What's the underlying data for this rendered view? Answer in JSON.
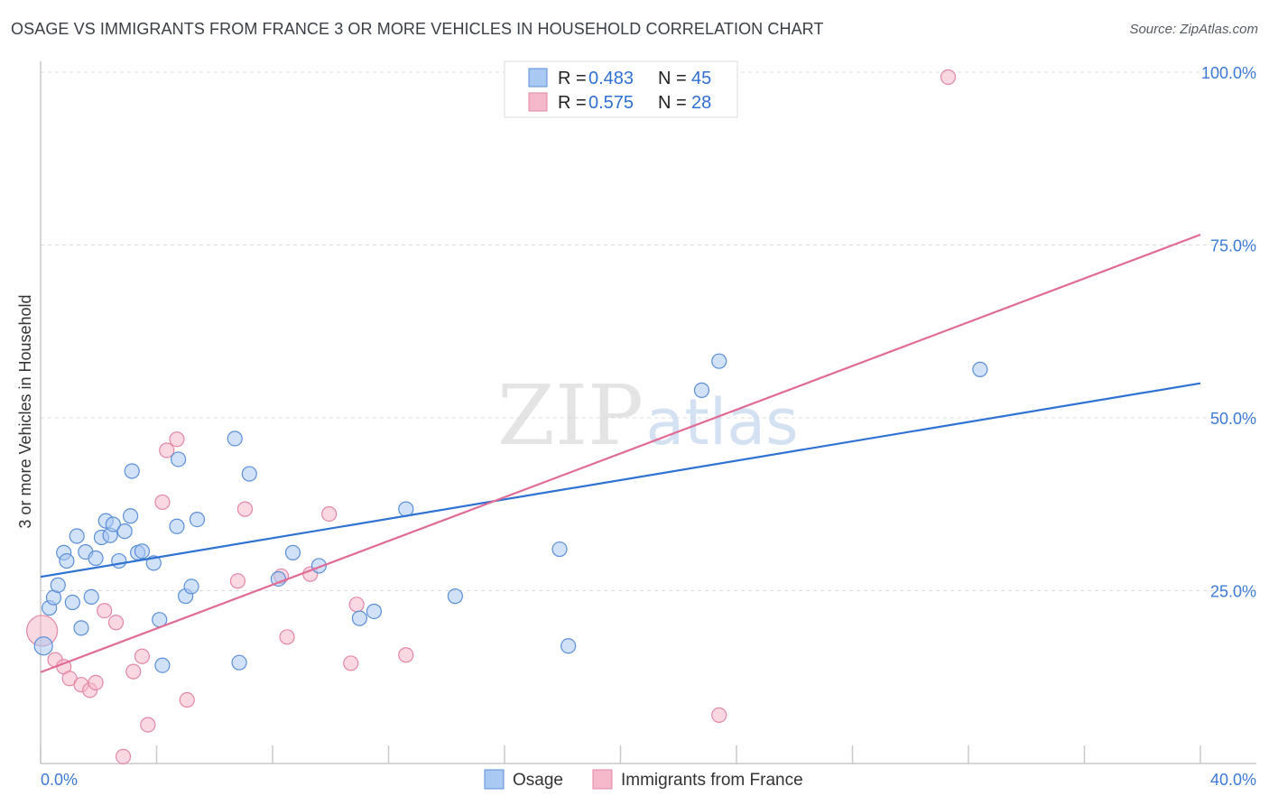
{
  "header": {
    "title": "OSAGE VS IMMIGRANTS FROM FRANCE 3 OR MORE VEHICLES IN HOUSEHOLD CORRELATION CHART",
    "source": "Source: ZipAtlas.com"
  },
  "watermark": {
    "zip": "ZIP",
    "atlas": "atlas"
  },
  "colors": {
    "osage_fill": "#a9c8f2",
    "osage_stroke": "#5b8fd8",
    "osage_line": "#2e72d2",
    "france_fill": "#f6b8cb",
    "france_stroke": "#e387a6",
    "france_line": "#e06c95",
    "tick_text": "#3d7ad6",
    "grid": "#dcdcdc"
  },
  "legend": {
    "rows": [
      {
        "r_label": "R = ",
        "r_value": "0.483",
        "n_label": "N = ",
        "n_value": "45"
      },
      {
        "r_label": "R = ",
        "r_value": "0.575",
        "n_label": "N = ",
        "n_value": "28"
      }
    ]
  },
  "chart_data": {
    "type": "scatter",
    "title": "OSAGE VS IMMIGRANTS FROM FRANCE 3 OR MORE VEHICLES IN HOUSEHOLD CORRELATION CHART",
    "xlabel": "",
    "ylabel": "3 or more Vehicles in Household",
    "xlim": [
      0,
      40
    ],
    "ylim": [
      0,
      100
    ],
    "x_tick_labels": [
      "0.0%",
      "40.0%"
    ],
    "y_ticks": [
      25,
      50,
      75,
      100
    ],
    "y_tick_labels": [
      "25.0%",
      "50.0%",
      "75.0%",
      "100.0%"
    ],
    "grid": true,
    "legend_position": "top-center",
    "series": [
      {
        "name": "Osage",
        "r": 0.483,
        "n": 45,
        "trend": {
          "x": [
            0,
            40
          ],
          "y": [
            27.0,
            55.0
          ]
        },
        "points": [
          {
            "x": 0.1,
            "y": 17.0,
            "r": 10
          },
          {
            "x": 0.3,
            "y": 22.5
          },
          {
            "x": 0.45,
            "y": 24.0
          },
          {
            "x": 0.6,
            "y": 25.8
          },
          {
            "x": 0.8,
            "y": 30.5
          },
          {
            "x": 0.9,
            "y": 29.3
          },
          {
            "x": 1.1,
            "y": 23.3
          },
          {
            "x": 1.25,
            "y": 32.9
          },
          {
            "x": 1.4,
            "y": 19.6
          },
          {
            "x": 1.55,
            "y": 30.6
          },
          {
            "x": 1.75,
            "y": 24.1
          },
          {
            "x": 1.9,
            "y": 29.7
          },
          {
            "x": 2.1,
            "y": 32.7
          },
          {
            "x": 2.25,
            "y": 35.1
          },
          {
            "x": 2.4,
            "y": 33.0
          },
          {
            "x": 2.5,
            "y": 34.6
          },
          {
            "x": 2.7,
            "y": 29.3
          },
          {
            "x": 2.9,
            "y": 33.6
          },
          {
            "x": 3.1,
            "y": 35.8
          },
          {
            "x": 3.15,
            "y": 42.3
          },
          {
            "x": 3.35,
            "y": 30.5
          },
          {
            "x": 3.5,
            "y": 30.7
          },
          {
            "x": 3.9,
            "y": 29.0
          },
          {
            "x": 4.1,
            "y": 20.8
          },
          {
            "x": 4.2,
            "y": 14.2
          },
          {
            "x": 4.7,
            "y": 34.3
          },
          {
            "x": 4.75,
            "y": 44.0
          },
          {
            "x": 5.0,
            "y": 24.2
          },
          {
            "x": 5.2,
            "y": 25.6
          },
          {
            "x": 5.4,
            "y": 35.3
          },
          {
            "x": 6.7,
            "y": 47.0
          },
          {
            "x": 6.85,
            "y": 14.6
          },
          {
            "x": 7.2,
            "y": 41.9
          },
          {
            "x": 8.2,
            "y": 26.7
          },
          {
            "x": 8.7,
            "y": 30.5
          },
          {
            "x": 9.6,
            "y": 28.6
          },
          {
            "x": 11.0,
            "y": 21.0
          },
          {
            "x": 11.5,
            "y": 22.0
          },
          {
            "x": 12.6,
            "y": 36.8
          },
          {
            "x": 14.3,
            "y": 24.2
          },
          {
            "x": 17.9,
            "y": 31.0
          },
          {
            "x": 18.2,
            "y": 17.0
          },
          {
            "x": 22.8,
            "y": 54.0
          },
          {
            "x": 23.4,
            "y": 58.2
          },
          {
            "x": 32.4,
            "y": 57.0
          }
        ]
      },
      {
        "name": "Immigrants from France",
        "r": 0.575,
        "n": 28,
        "trend": {
          "x": [
            0,
            40
          ],
          "y": [
            13.2,
            76.5
          ]
        },
        "points": [
          {
            "x": 0.05,
            "y": 19.2,
            "r": 17
          },
          {
            "x": 0.5,
            "y": 15.0
          },
          {
            "x": 0.8,
            "y": 14.0
          },
          {
            "x": 1.0,
            "y": 12.3
          },
          {
            "x": 1.4,
            "y": 11.4
          },
          {
            "x": 1.7,
            "y": 10.6
          },
          {
            "x": 1.9,
            "y": 11.7
          },
          {
            "x": 2.2,
            "y": 22.1
          },
          {
            "x": 2.6,
            "y": 20.4
          },
          {
            "x": 2.85,
            "y": 1.0
          },
          {
            "x": 3.2,
            "y": 13.3
          },
          {
            "x": 3.5,
            "y": 15.5
          },
          {
            "x": 3.7,
            "y": 5.6
          },
          {
            "x": 4.2,
            "y": 37.8
          },
          {
            "x": 4.35,
            "y": 45.3
          },
          {
            "x": 4.7,
            "y": 46.9
          },
          {
            "x": 5.05,
            "y": 9.2
          },
          {
            "x": 6.8,
            "y": 26.4
          },
          {
            "x": 7.05,
            "y": 36.8
          },
          {
            "x": 8.3,
            "y": 27.1
          },
          {
            "x": 8.5,
            "y": 18.3
          },
          {
            "x": 9.3,
            "y": 27.4
          },
          {
            "x": 9.95,
            "y": 36.1
          },
          {
            "x": 10.7,
            "y": 14.5
          },
          {
            "x": 10.9,
            "y": 23.0
          },
          {
            "x": 12.6,
            "y": 15.7
          },
          {
            "x": 23.4,
            "y": 7.0
          },
          {
            "x": 31.3,
            "y": 99.3
          }
        ]
      }
    ]
  }
}
